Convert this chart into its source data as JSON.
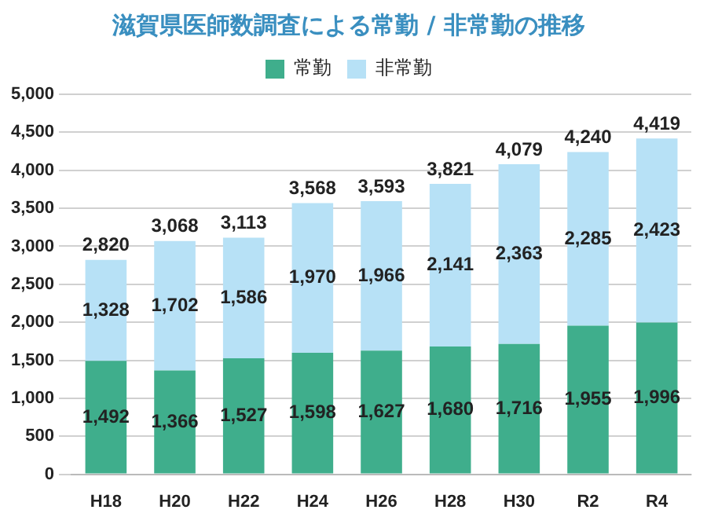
{
  "chart_data": {
    "type": "bar",
    "title": "滋賀県医師数調査による常勤 / 非常勤の推移",
    "categories": [
      "H18",
      "H20",
      "H22",
      "H24",
      "H26",
      "H28",
      "H30",
      "R2",
      "R4"
    ],
    "stacked": true,
    "series": [
      {
        "name": "常勤",
        "color": "#3fae8c",
        "values": [
          1492,
          1366,
          1527,
          1598,
          1627,
          1680,
          1716,
          1955,
          1996
        ],
        "value_labels": [
          "1,492",
          "1,366",
          "1,527",
          "1,598",
          "1,627",
          "1,680",
          "1,716",
          "1,955",
          "1,996"
        ]
      },
      {
        "name": "非常勤",
        "color": "#b7e1f6",
        "values": [
          1328,
          1702,
          1586,
          1970,
          1966,
          2141,
          2363,
          2285,
          2423
        ],
        "value_labels": [
          "1,328",
          "1,702",
          "1,586",
          "1,970",
          "1,966",
          "2,141",
          "2,363",
          "2,285",
          "2,423"
        ]
      }
    ],
    "totals": [
      "2,820",
      "3,068",
      "3,113",
      "3,568",
      "3,593",
      "3,821",
      "4,079",
      "4,240",
      "4,419"
    ],
    "ylim": [
      0,
      5000
    ],
    "yticks": [
      0,
      500,
      {
        "value": 1000,
        "label": "1,000"
      },
      {
        "value": 1500,
        "label": "1,500"
      },
      {
        "value": 2000,
        "label": "2,000"
      },
      {
        "value": 2500,
        "label": "2,500"
      },
      {
        "value": 3000,
        "label": "3,000"
      },
      {
        "value": 3500,
        "label": "3,500"
      },
      {
        "value": 4000,
        "label": "4,000"
      },
      {
        "value": 4500,
        "label": "4,500"
      },
      {
        "value": 5000,
        "label": "5,000"
      }
    ],
    "grid": "y",
    "legend": "top"
  }
}
